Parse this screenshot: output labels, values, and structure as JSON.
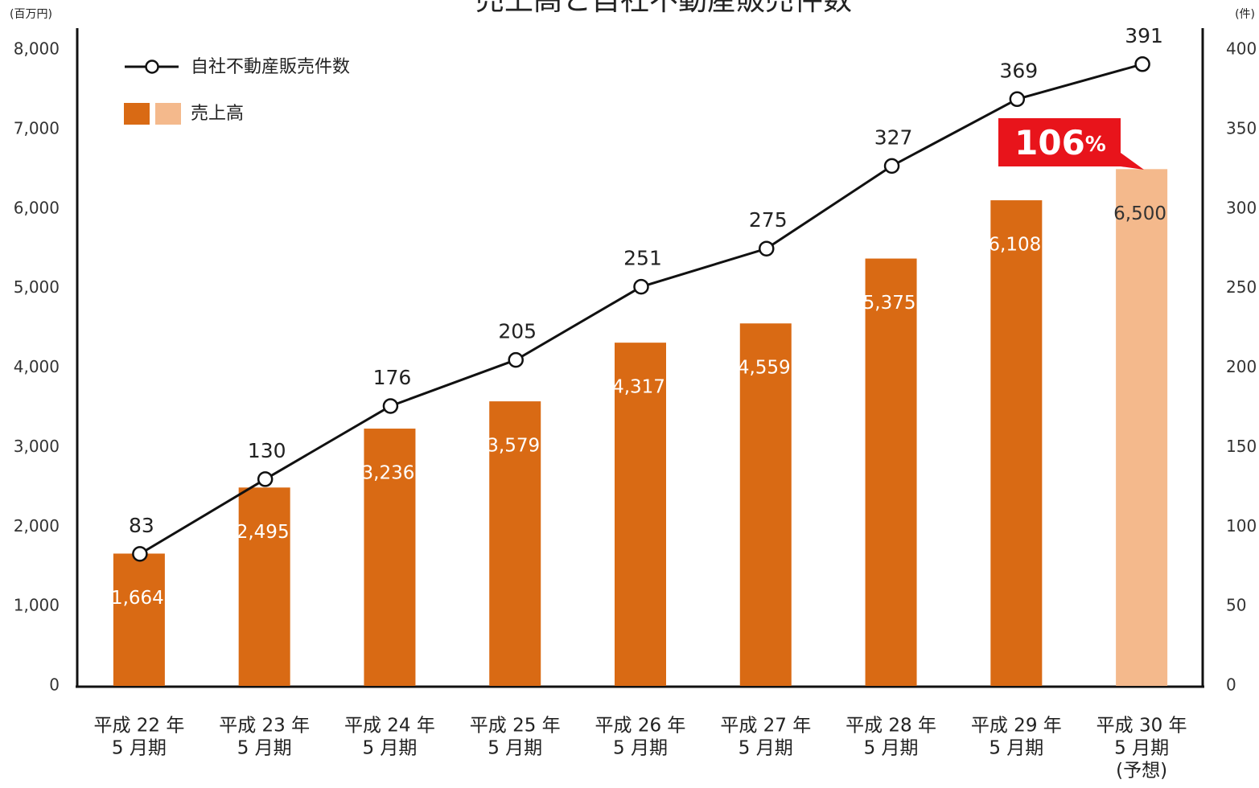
{
  "chart_data": {
    "type": "bar_line",
    "title": "売上高と自社不動産販売件数",
    "y_unit": "(百万円)",
    "y2_unit": "(件)",
    "categories": [
      [
        "平成 22 年",
        "5 月期"
      ],
      [
        "平成 23 年",
        "5 月期"
      ],
      [
        "平成 24 年",
        "5 月期"
      ],
      [
        "平成 25 年",
        "5 月期"
      ],
      [
        "平成 26 年",
        "5 月期"
      ],
      [
        "平成 27 年",
        "5 月期"
      ],
      [
        "平成 28 年",
        "5 月期"
      ],
      [
        "平成 29 年",
        "5 月期"
      ],
      [
        "平成 30 年",
        "5 月期",
        "(予想)"
      ]
    ],
    "series": [
      {
        "name": "売上高",
        "type": "bar",
        "colors": [
          "#d96a14",
          "#d96a14",
          "#d96a14",
          "#d96a14",
          "#d96a14",
          "#d96a14",
          "#d96a14",
          "#d96a14",
          "#f4b98c"
        ],
        "values": [
          1664,
          2495,
          3236,
          3579,
          4317,
          4559,
          5375,
          6108,
          6500
        ],
        "value_labels": [
          "1,664",
          "2,495",
          "3,236",
          "3,579",
          "4,317",
          "4,559",
          "5,375",
          "6,108",
          "6,500"
        ]
      },
      {
        "name": "自社不動産販売件数",
        "type": "line",
        "axis": "y2",
        "color": "#111111",
        "values": [
          83,
          130,
          176,
          205,
          251,
          275,
          327,
          369,
          391
        ]
      }
    ],
    "annotation": {
      "text": "106",
      "unit": "%",
      "color": "#e8141b"
    },
    "ylim": [
      0,
      8000
    ],
    "yticks": [
      0,
      {
        "value": 1000,
        "label": "1,000"
      },
      {
        "value": 2000,
        "label": "2,000"
      },
      {
        "value": 3000,
        "label": "3,000"
      },
      {
        "value": 4000,
        "label": "4,000"
      },
      {
        "value": 5000,
        "label": "5,000"
      },
      {
        "value": 6000,
        "label": "6,000"
      },
      {
        "value": 7000,
        "label": "7,000"
      },
      {
        "value": 8000,
        "label": "8,000"
      }
    ],
    "y2lim": [
      0,
      400
    ],
    "y2ticks": [
      0,
      50,
      100,
      150,
      200,
      250,
      300,
      350,
      400
    ],
    "grid": false
  }
}
